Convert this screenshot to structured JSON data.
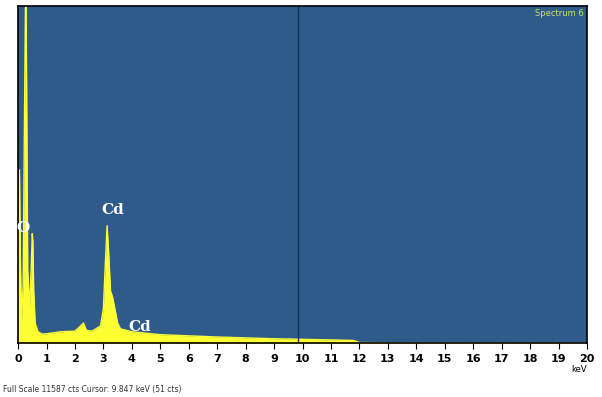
{
  "chart_data": {
    "type": "area",
    "subtitle": "Spectrum 6",
    "x_label": "keV",
    "footer": "Full Scale 11587 cts Cursor: 9.847 keV (51 cts)",
    "x": [
      0,
      0.02,
      0.05,
      0.08,
      0.12,
      0.18,
      0.22,
      0.26,
      0.28,
      0.3,
      0.34,
      0.4,
      0.46,
      0.5,
      0.52,
      0.55,
      0.6,
      0.7,
      0.85,
      1.0,
      1.5,
      2.0,
      2.2,
      2.3,
      2.4,
      2.6,
      2.9,
      3.0,
      3.08,
      3.13,
      3.18,
      3.25,
      3.32,
      3.4,
      3.5,
      3.6,
      3.8,
      4.0,
      4.5,
      5,
      6,
      7,
      8,
      9,
      10,
      11,
      11.8,
      12,
      13,
      15,
      17,
      20
    ],
    "values": [
      0,
      3000,
      5960,
      3000,
      800,
      2000,
      7000,
      11587,
      11587,
      9000,
      2500,
      1200,
      2500,
      3770,
      3500,
      1800,
      700,
      400,
      320,
      330,
      400,
      420,
      600,
      700,
      450,
      420,
      600,
      1200,
      3000,
      4040,
      3200,
      1800,
      1600,
      1200,
      700,
      500,
      450,
      400,
      350,
      300,
      260,
      220,
      190,
      160,
      140,
      120,
      100,
      30,
      20,
      15,
      10,
      8
    ],
    "color": "#ffff33",
    "cursor_x": 9.847,
    "annotations": [
      {
        "text": "O",
        "x": 0.52
      },
      {
        "text": "Cd",
        "x": 3.13
      },
      {
        "text": "Cd",
        "x": 3.5
      }
    ],
    "xlim": [
      0,
      20
    ],
    "xticks": [
      0,
      1,
      2,
      3,
      4,
      5,
      6,
      7,
      8,
      9,
      10,
      11,
      12,
      13,
      14,
      15,
      16,
      17,
      18,
      19,
      20
    ],
    "ylim": [
      0,
      11587
    ],
    "tick_labels": "x",
    "grid": false
  }
}
